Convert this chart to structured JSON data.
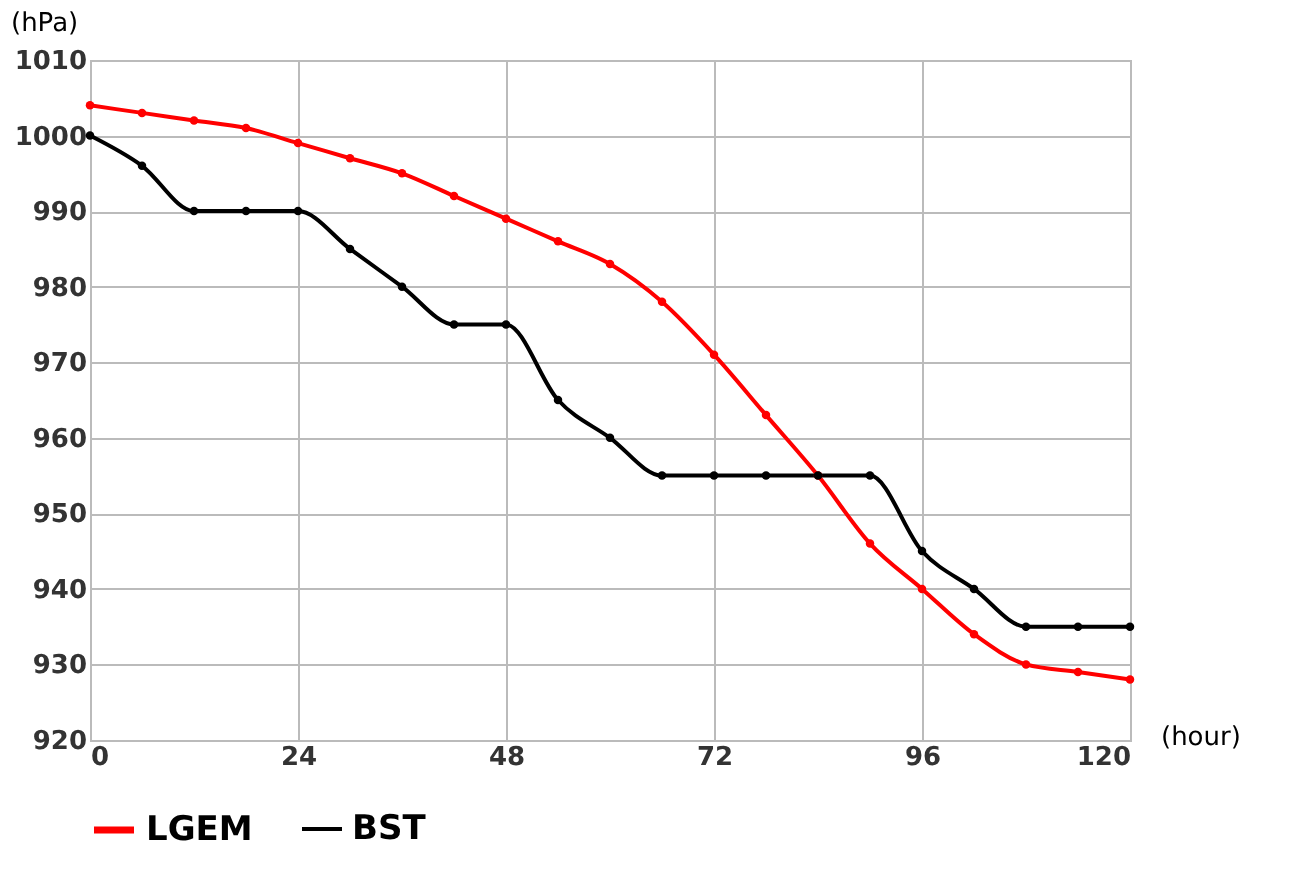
{
  "chart_data": {
    "type": "line",
    "xlabel": "(hour)",
    "ylabel": "(hPa)",
    "x": [
      0,
      6,
      12,
      18,
      24,
      30,
      36,
      42,
      48,
      54,
      60,
      66,
      72,
      78,
      84,
      90,
      96,
      102,
      108,
      114,
      120
    ],
    "series": [
      {
        "name": "LGEM",
        "color": "#ff0000",
        "values": [
          1004,
          1003,
          1002,
          1001,
          999,
          997,
          995,
          992,
          989,
          986,
          983,
          978,
          971,
          963,
          955,
          946,
          940,
          934,
          930,
          929,
          928
        ]
      },
      {
        "name": "BST",
        "color": "#000000",
        "values": [
          1000,
          996,
          990,
          990,
          990,
          985,
          980,
          975,
          975,
          965,
          960,
          955,
          955,
          955,
          955,
          955,
          945,
          940,
          935,
          935,
          935
        ]
      }
    ],
    "xlim": [
      0,
      120
    ],
    "xticks": [
      0,
      24,
      48,
      72,
      96,
      120
    ],
    "ylim": [
      920,
      1010
    ],
    "yticks": [
      920,
      930,
      940,
      950,
      960,
      970,
      980,
      990,
      1000,
      1010
    ],
    "grid": true,
    "legend": "bottom",
    "marker": "circle",
    "line_style": "solid"
  }
}
